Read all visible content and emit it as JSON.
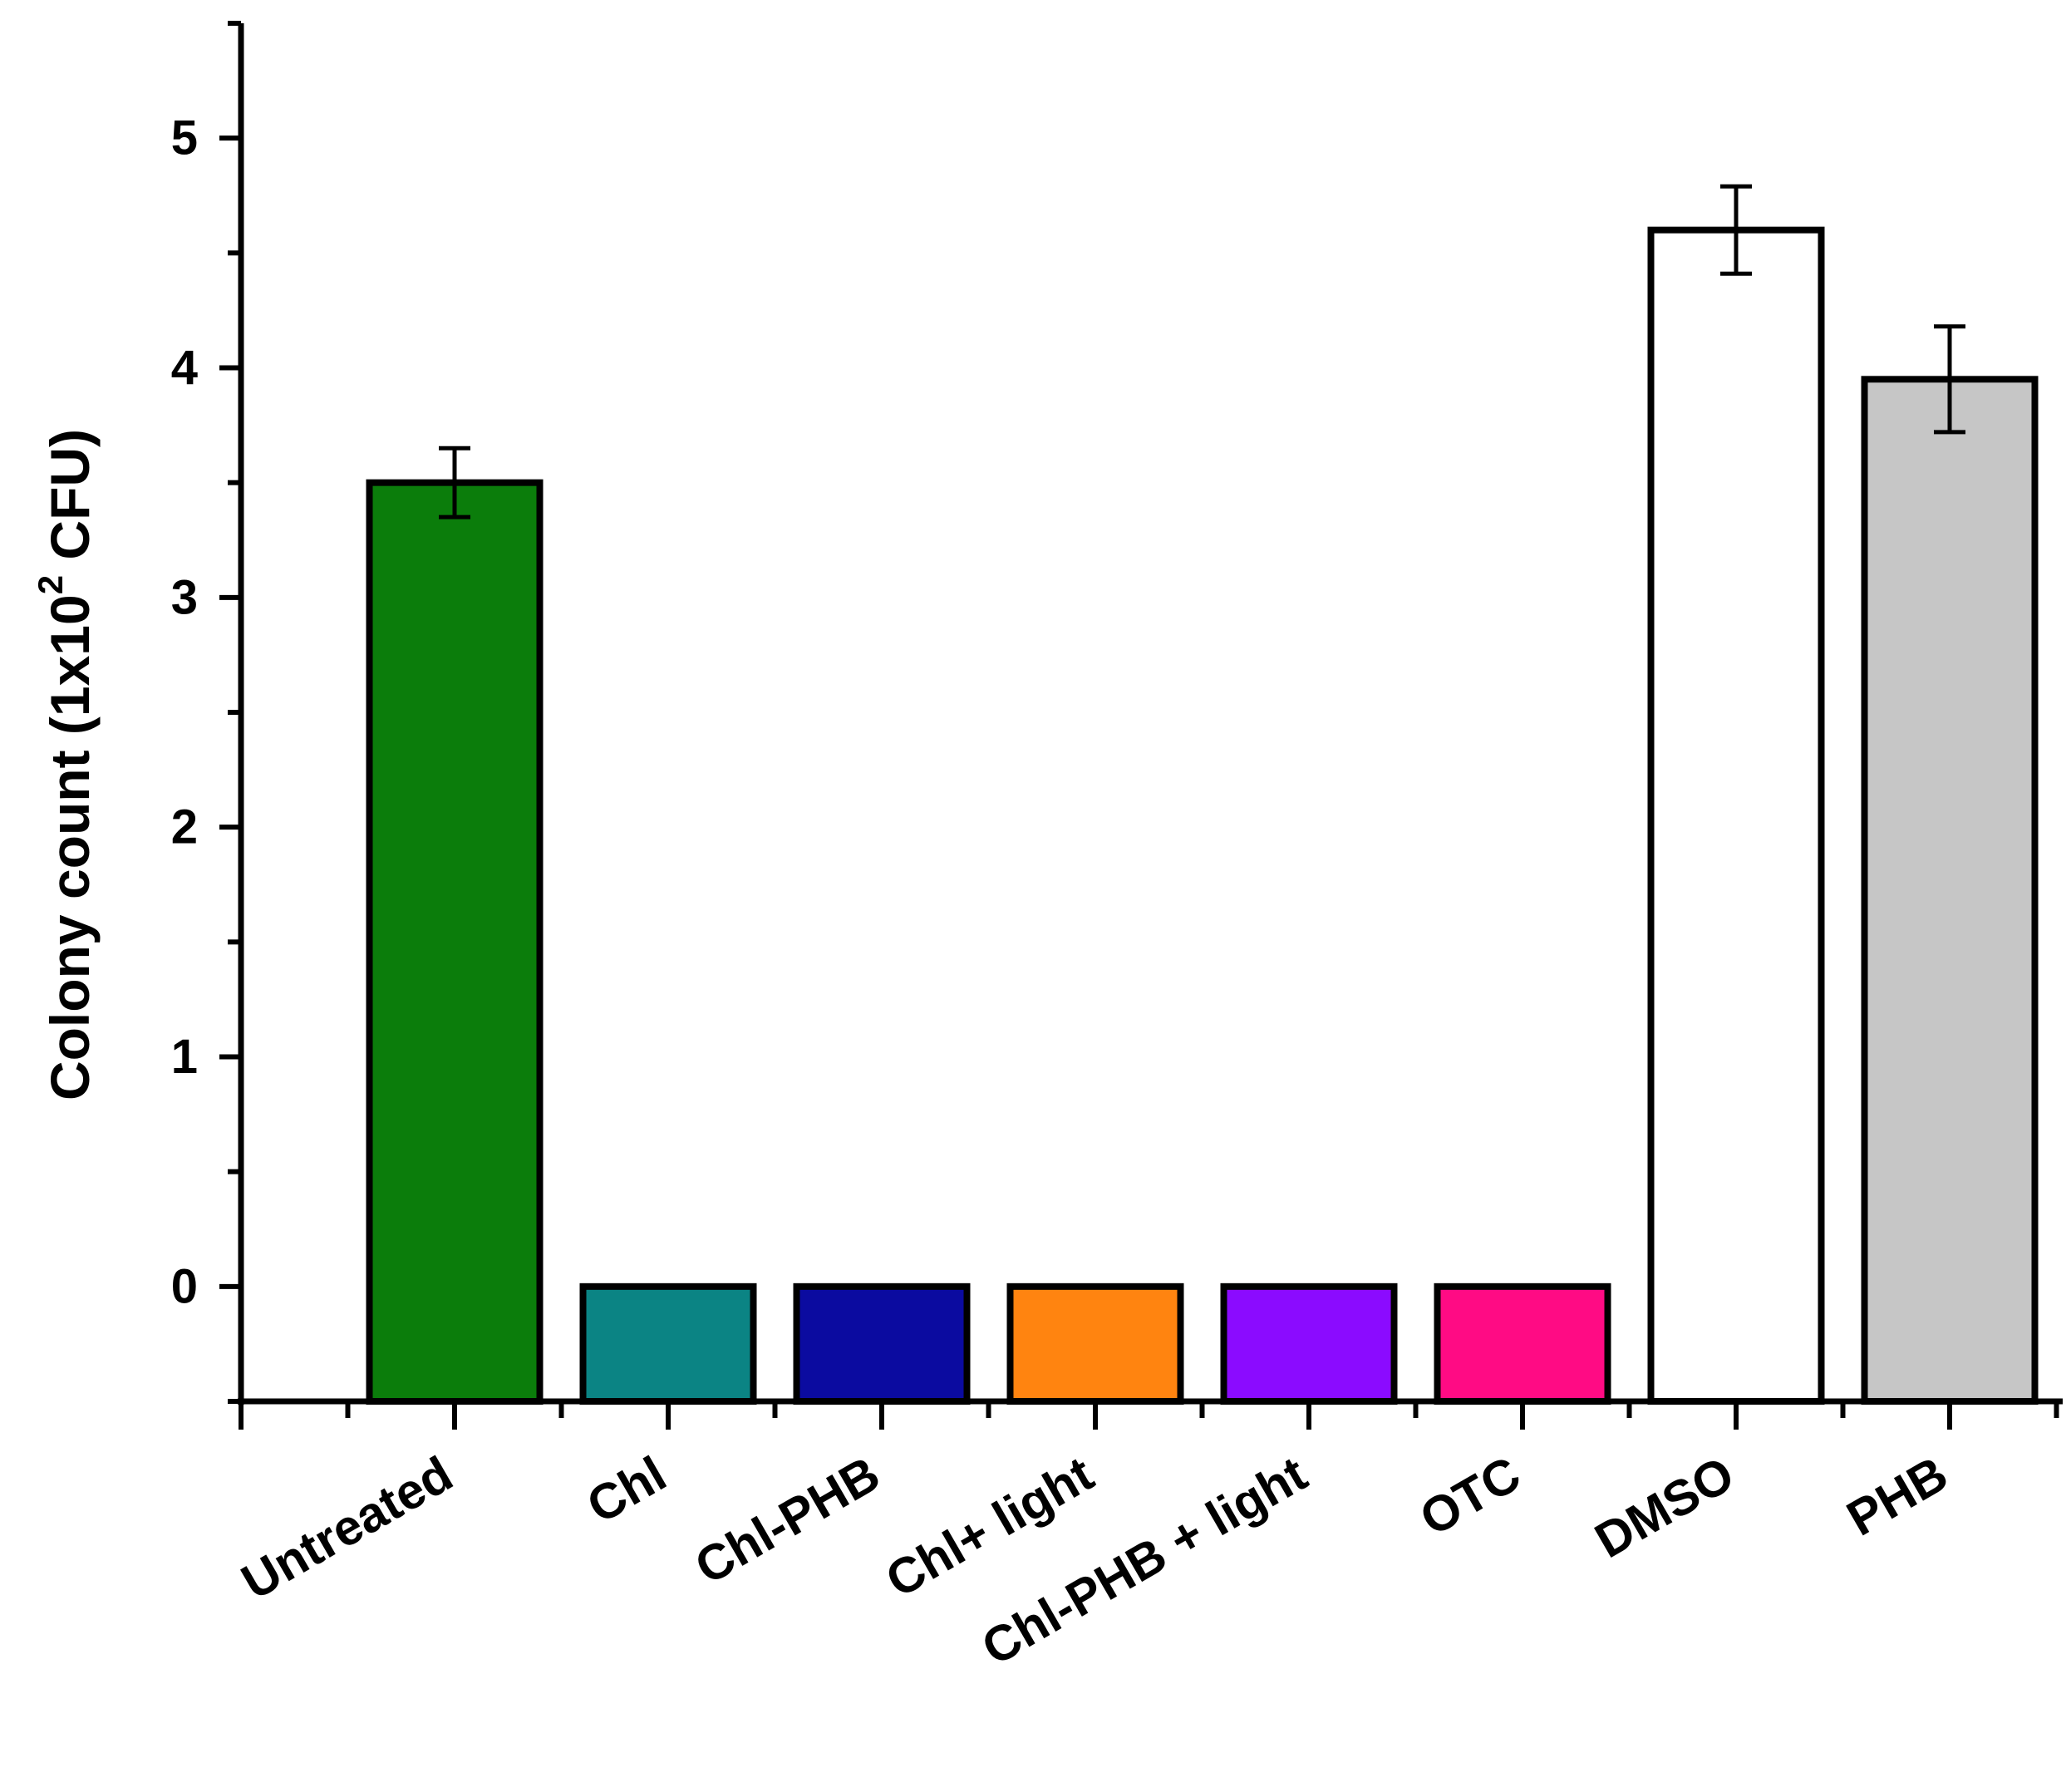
{
  "chart_data": {
    "type": "bar",
    "categories": [
      "Untreated",
      "Chl",
      "Chl-PHB",
      "Chl+ light",
      "Chl-PHB + light",
      "OTC",
      "DMSO",
      "PHB"
    ],
    "values": [
      3.5,
      0,
      0,
      0,
      0,
      0,
      4.6,
      3.95
    ],
    "errors": [
      0.15,
      0,
      0,
      0,
      0,
      0,
      0.19,
      0.23
    ],
    "colors": [
      "#0b7d0b",
      "#0b8484",
      "#0b0ba0",
      "#ff8410",
      "#8b0bff",
      "#ff0b84",
      "#ffffff",
      "#c6c6c6"
    ],
    "ylabel_main": "Colony count (1x10",
    "ylabel_sup": "2",
    "ylabel_tail": " CFU)",
    "ylim": [
      -0.5,
      5.5
    ],
    "yticks": [
      "0",
      "1",
      "2",
      "3",
      "4",
      "5"
    ],
    "grid": false,
    "legend": "none"
  }
}
